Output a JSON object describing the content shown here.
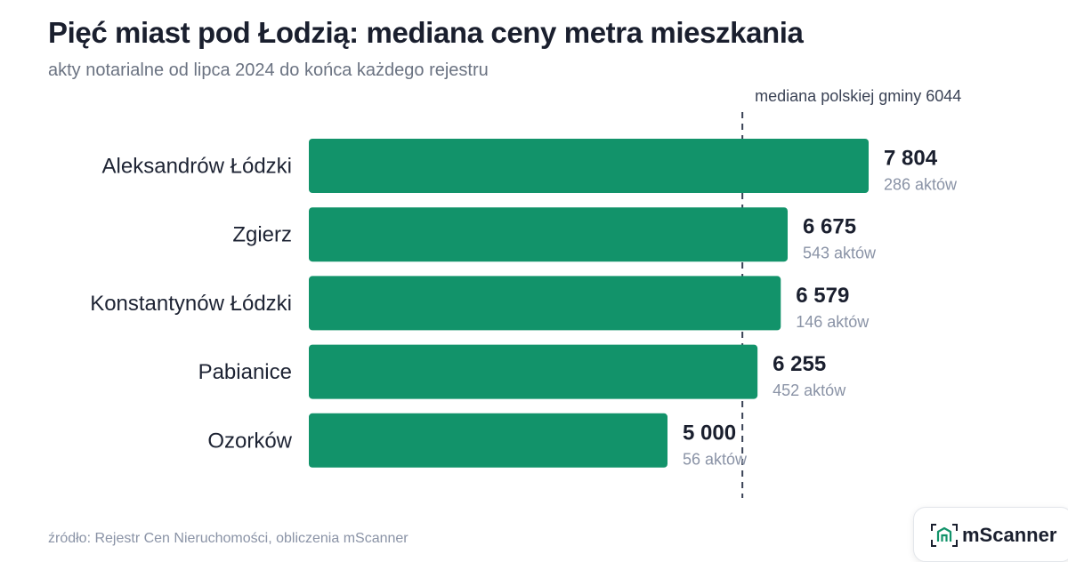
{
  "header": {
    "title": "Pięć miast pod Łodzią: mediana ceny metra mieszkania",
    "subtitle": "akty notarialne od lipca 2024 do końca każdego rejestru"
  },
  "chart_data": {
    "type": "bar",
    "orientation": "horizontal",
    "categories": [
      "Aleksandrów Łódzki",
      "Zgierz",
      "Konstantynów Łódzki",
      "Pabianice",
      "Ozorków"
    ],
    "values": [
      7804,
      6675,
      6579,
      6255,
      5000
    ],
    "value_labels": [
      "7 804",
      "6 675",
      "6 579",
      "6 255",
      "5 000"
    ],
    "count_labels": [
      "286 aktów",
      "543 aktów",
      "146 aktów",
      "452 aktów",
      "56 aktów"
    ],
    "reference_line": {
      "value": 6044,
      "label": "mediana polskiej gminy 6044"
    },
    "bar_color": "#12936a",
    "grid": false
  },
  "footer": {
    "source": "źródło: Rejestr Cen Nieruchomości, obliczenia mScanner",
    "logo_text": "mScanner",
    "logo_color": "#12936a"
  }
}
